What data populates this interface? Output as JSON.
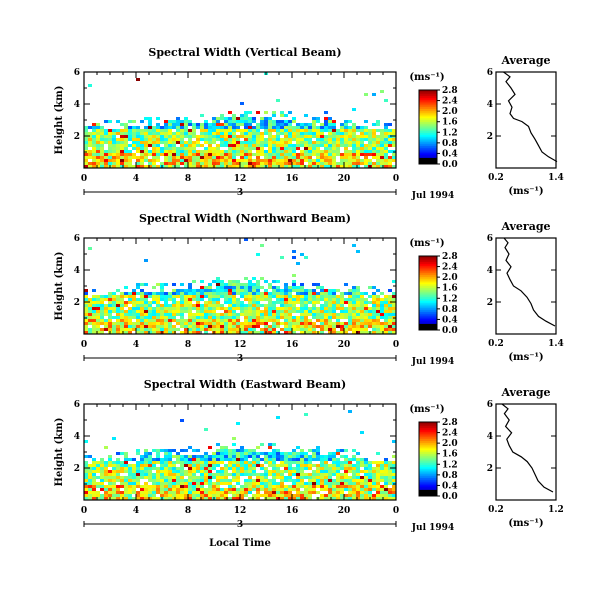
{
  "chart_data": [
    {
      "type": "heatmap",
      "title": "Spectral Width (Vertical Beam)",
      "ylabel": "Height (km)",
      "xlabel": "",
      "x_ticks": [
        "0",
        "4",
        "8",
        "12",
        "16",
        "20",
        "0"
      ],
      "y_ticks": [
        "2",
        "4",
        "6"
      ],
      "date_marker": "3",
      "date_label": "Jul 1994",
      "colorbar": {
        "label": "(ms⁻¹)",
        "ticks": [
          "0.0",
          "0.4",
          "0.8",
          "1.2",
          "1.6",
          "2.0",
          "2.4",
          "2.8"
        ],
        "range": [
          0,
          2.8
        ]
      },
      "ylim": [
        0,
        6
      ],
      "xlim": [
        0,
        24
      ],
      "average_profile": {
        "title": "Average",
        "xlabel": "(ms⁻¹)",
        "x_ticks": [
          "0.2",
          "1.4"
        ],
        "y_ticks": [
          "2",
          "4",
          "6"
        ],
        "xlim": [
          0.2,
          1.4
        ],
        "points": [
          [
            1.42,
            0.4
          ],
          [
            1.25,
            0.7
          ],
          [
            1.12,
            1.0
          ],
          [
            1.05,
            1.4
          ],
          [
            0.98,
            1.8
          ],
          [
            0.9,
            2.2
          ],
          [
            0.85,
            2.6
          ],
          [
            0.72,
            2.9
          ],
          [
            0.55,
            3.1
          ],
          [
            0.48,
            3.4
          ],
          [
            0.52,
            3.8
          ],
          [
            0.45,
            4.2
          ],
          [
            0.58,
            4.6
          ],
          [
            0.5,
            5.0
          ],
          [
            0.4,
            5.4
          ],
          [
            0.48,
            5.7
          ],
          [
            0.35,
            6.0
          ]
        ]
      }
    },
    {
      "type": "heatmap",
      "title": "Spectral Width (Northward Beam)",
      "ylabel": "Height (km)",
      "xlabel": "",
      "x_ticks": [
        "0",
        "4",
        "8",
        "12",
        "16",
        "20",
        "0"
      ],
      "y_ticks": [
        "2",
        "4",
        "6"
      ],
      "date_marker": "3",
      "date_label": "Jul 1994",
      "colorbar": {
        "label": "(ms⁻¹)",
        "ticks": [
          "0.0",
          "0.4",
          "0.8",
          "1.2",
          "1.6",
          "2.0",
          "2.4",
          "2.8"
        ],
        "range": [
          0,
          2.8
        ]
      },
      "ylim": [
        0,
        6
      ],
      "xlim": [
        0,
        24
      ],
      "average_profile": {
        "title": "Average",
        "xlabel": "(ms⁻¹)",
        "x_ticks": [
          "0.2",
          "1.4"
        ],
        "y_ticks": [
          "2",
          "4",
          "6"
        ],
        "xlim": [
          0.2,
          1.4
        ],
        "points": [
          [
            1.38,
            0.5
          ],
          [
            1.2,
            0.8
          ],
          [
            1.05,
            1.1
          ],
          [
            0.95,
            1.5
          ],
          [
            0.9,
            1.9
          ],
          [
            0.82,
            2.3
          ],
          [
            0.7,
            2.7
          ],
          [
            0.55,
            3.0
          ],
          [
            0.48,
            3.4
          ],
          [
            0.42,
            3.8
          ],
          [
            0.5,
            4.2
          ],
          [
            0.4,
            4.6
          ],
          [
            0.46,
            5.0
          ],
          [
            0.38,
            5.4
          ],
          [
            0.44,
            5.7
          ],
          [
            0.36,
            6.0
          ]
        ]
      }
    },
    {
      "type": "heatmap",
      "title": "Spectral Width (Eastward Beam)",
      "ylabel": "Height (km)",
      "xlabel": "Local Time",
      "x_ticks": [
        "0",
        "4",
        "8",
        "12",
        "16",
        "20",
        "0"
      ],
      "y_ticks": [
        "2",
        "4",
        "6"
      ],
      "date_marker": "3",
      "date_label": "Jul 1994",
      "colorbar": {
        "label": "(ms⁻¹)",
        "ticks": [
          "0.0",
          "0.4",
          "0.8",
          "1.2",
          "1.6",
          "2.0",
          "2.4",
          "2.8"
        ],
        "range": [
          0,
          2.8
        ]
      },
      "ylim": [
        0,
        6
      ],
      "xlim": [
        0,
        24
      ],
      "average_profile": {
        "title": "Average",
        "xlabel": "(ms⁻¹)",
        "x_ticks": [
          "0.2",
          "1.2"
        ],
        "y_ticks": [
          "2",
          "4",
          "6"
        ],
        "xlim": [
          0.2,
          1.2
        ],
        "points": [
          [
            1.15,
            0.5
          ],
          [
            1.0,
            0.8
          ],
          [
            0.9,
            1.2
          ],
          [
            0.85,
            1.6
          ],
          [
            0.8,
            2.0
          ],
          [
            0.72,
            2.4
          ],
          [
            0.62,
            2.7
          ],
          [
            0.48,
            3.0
          ],
          [
            0.42,
            3.4
          ],
          [
            0.38,
            3.8
          ],
          [
            0.46,
            4.2
          ],
          [
            0.36,
            4.6
          ],
          [
            0.42,
            5.0
          ],
          [
            0.34,
            5.4
          ],
          [
            0.4,
            5.7
          ],
          [
            0.3,
            6.0
          ]
        ]
      }
    }
  ]
}
